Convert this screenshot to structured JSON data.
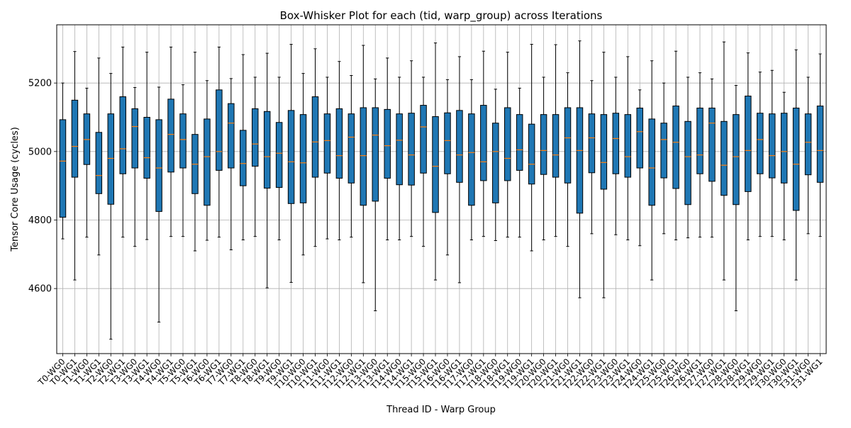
{
  "chart_data": {
    "type": "box",
    "title": "Box-Whisker Plot for each (tid, warp_group) across Iterations",
    "xlabel": "Thread ID - Warp Group",
    "ylabel": "Tensor Core Usage (cycles)",
    "ylim": [
      4410,
      5370
    ],
    "yticks": [
      4600,
      4800,
      5000,
      5200
    ],
    "grid": true,
    "colors": {
      "box_fill": "#1f77b4",
      "median": "#ff7f0e",
      "grid": "#b0b0b0",
      "outline": "#000000"
    },
    "categories": [
      "T0-WG0",
      "T0-WG1",
      "T1-WG0",
      "T1-WG1",
      "T2-WG0",
      "T2-WG1",
      "T3-WG0",
      "T3-WG1",
      "T4-WG0",
      "T4-WG1",
      "T5-WG0",
      "T5-WG1",
      "T6-WG0",
      "T6-WG1",
      "T7-WG0",
      "T7-WG1",
      "T8-WG0",
      "T8-WG1",
      "T9-WG0",
      "T9-WG1",
      "T10-WG0",
      "T10-WG1",
      "T11-WG0",
      "T11-WG1",
      "T12-WG0",
      "T12-WG1",
      "T13-WG0",
      "T13-WG1",
      "T14-WG0",
      "T14-WG1",
      "T15-WG0",
      "T15-WG1",
      "T16-WG0",
      "T16-WG1",
      "T17-WG0",
      "T17-WG1",
      "T18-WG0",
      "T18-WG1",
      "T19-WG0",
      "T19-WG1",
      "T20-WG0",
      "T20-WG1",
      "T21-WG0",
      "T21-WG1",
      "T22-WG0",
      "T22-WG1",
      "T23-WG0",
      "T23-WG1",
      "T24-WG0",
      "T24-WG1",
      "T25-WG0",
      "T25-WG1",
      "T26-WG0",
      "T26-WG1",
      "T27-WG0",
      "T27-WG1",
      "T28-WG0",
      "T28-WG1",
      "T29-WG0",
      "T29-WG1",
      "T30-WG0",
      "T30-WG1",
      "T31-WG0",
      "T31-WG1"
    ],
    "boxes": [
      {
        "min": 4745,
        "q1": 4808,
        "median": 4972,
        "q3": 5093,
        "max": 5200
      },
      {
        "min": 4625,
        "q1": 4925,
        "median": 5015,
        "q3": 5150,
        "max": 5292
      },
      {
        "min": 4750,
        "q1": 4962,
        "median": 5035,
        "q3": 5110,
        "max": 5185
      },
      {
        "min": 4698,
        "q1": 4877,
        "median": 4930,
        "q3": 5056,
        "max": 5273
      },
      {
        "min": 4452,
        "q1": 4846,
        "median": 4980,
        "q3": 5110,
        "max": 5228
      },
      {
        "min": 4750,
        "q1": 4935,
        "median": 5008,
        "q3": 5160,
        "max": 5305
      },
      {
        "min": 4723,
        "q1": 4952,
        "median": 5073,
        "q3": 5125,
        "max": 5187
      },
      {
        "min": 4743,
        "q1": 4922,
        "median": 4982,
        "q3": 5100,
        "max": 5290
      },
      {
        "min": 4502,
        "q1": 4825,
        "median": 4952,
        "q3": 5093,
        "max": 5188
      },
      {
        "min": 4752,
        "q1": 4940,
        "median": 5050,
        "q3": 5153,
        "max": 5305
      },
      {
        "min": 4752,
        "q1": 4952,
        "median": 5035,
        "q3": 5110,
        "max": 5195
      },
      {
        "min": 4710,
        "q1": 4877,
        "median": 4963,
        "q3": 5050,
        "max": 5290
      },
      {
        "min": 4741,
        "q1": 4843,
        "median": 4985,
        "q3": 5095,
        "max": 5207
      },
      {
        "min": 4750,
        "q1": 4945,
        "median": 5000,
        "q3": 5180,
        "max": 5305
      },
      {
        "min": 4713,
        "q1": 4952,
        "median": 5083,
        "q3": 5140,
        "max": 5213
      },
      {
        "min": 4742,
        "q1": 4900,
        "median": 4965,
        "q3": 5062,
        "max": 5283
      },
      {
        "min": 4752,
        "q1": 4957,
        "median": 5022,
        "q3": 5125,
        "max": 5217
      },
      {
        "min": 4602,
        "q1": 4893,
        "median": 4985,
        "q3": 5117,
        "max": 5287
      },
      {
        "min": 4742,
        "q1": 4895,
        "median": 4995,
        "q3": 5085,
        "max": 5217
      },
      {
        "min": 4618,
        "q1": 4848,
        "median": 4970,
        "q3": 5120,
        "max": 5313
      },
      {
        "min": 4698,
        "q1": 4850,
        "median": 4967,
        "q3": 5108,
        "max": 5228
      },
      {
        "min": 4723,
        "q1": 4925,
        "median": 5028,
        "q3": 5160,
        "max": 5300
      },
      {
        "min": 4745,
        "q1": 4937,
        "median": 5032,
        "q3": 5110,
        "max": 5217
      },
      {
        "min": 4742,
        "q1": 4922,
        "median": 4988,
        "q3": 5125,
        "max": 5263
      },
      {
        "min": 4750,
        "q1": 4908,
        "median": 5042,
        "q3": 5110,
        "max": 5222
      },
      {
        "min": 4617,
        "q1": 4843,
        "median": 4988,
        "q3": 5128,
        "max": 5310
      },
      {
        "min": 4535,
        "q1": 4855,
        "median": 5048,
        "q3": 5128,
        "max": 5212
      },
      {
        "min": 4742,
        "q1": 4922,
        "median": 5017,
        "q3": 5123,
        "max": 5273
      },
      {
        "min": 4742,
        "q1": 4903,
        "median": 5033,
        "q3": 5110,
        "max": 5217
      },
      {
        "min": 4752,
        "q1": 4902,
        "median": 4990,
        "q3": 5112,
        "max": 5265
      },
      {
        "min": 4723,
        "q1": 4937,
        "median": 5072,
        "q3": 5135,
        "max": 5217
      },
      {
        "min": 4625,
        "q1": 4822,
        "median": 4957,
        "q3": 5102,
        "max": 5317
      },
      {
        "min": 4698,
        "q1": 4935,
        "median": 5032,
        "q3": 5113,
        "max": 5210
      },
      {
        "min": 4617,
        "q1": 4910,
        "median": 4990,
        "q3": 5120,
        "max": 5277
      },
      {
        "min": 4742,
        "q1": 4843,
        "median": 4997,
        "q3": 5110,
        "max": 5210
      },
      {
        "min": 4752,
        "q1": 4915,
        "median": 4970,
        "q3": 5135,
        "max": 5293
      },
      {
        "min": 4740,
        "q1": 4850,
        "median": 5000,
        "q3": 5083,
        "max": 5182
      },
      {
        "min": 4750,
        "q1": 4915,
        "median": 4980,
        "q3": 5128,
        "max": 5290
      },
      {
        "min": 4750,
        "q1": 4945,
        "median": 5005,
        "q3": 5108,
        "max": 5185
      },
      {
        "min": 4710,
        "q1": 4905,
        "median": 4963,
        "q3": 5080,
        "max": 5313
      },
      {
        "min": 4742,
        "q1": 4933,
        "median": 5003,
        "q3": 5108,
        "max": 5217
      },
      {
        "min": 4752,
        "q1": 4925,
        "median": 4990,
        "q3": 5108,
        "max": 5312
      },
      {
        "min": 4723,
        "q1": 4908,
        "median": 5040,
        "q3": 5128,
        "max": 5230
      },
      {
        "min": 4573,
        "q1": 4820,
        "median": 5003,
        "q3": 5128,
        "max": 5323
      },
      {
        "min": 4760,
        "q1": 4938,
        "median": 5040,
        "q3": 5110,
        "max": 5207
      },
      {
        "min": 4573,
        "q1": 4890,
        "median": 4968,
        "q3": 5108,
        "max": 5290
      },
      {
        "min": 4757,
        "q1": 4935,
        "median": 5038,
        "q3": 5112,
        "max": 5217
      },
      {
        "min": 4742,
        "q1": 4925,
        "median": 4985,
        "q3": 5108,
        "max": 5277
      },
      {
        "min": 4725,
        "q1": 4952,
        "median": 5058,
        "q3": 5127,
        "max": 5180
      },
      {
        "min": 4625,
        "q1": 4843,
        "median": 4952,
        "q3": 5095,
        "max": 5265
      },
      {
        "min": 4760,
        "q1": 4923,
        "median": 5035,
        "q3": 5083,
        "max": 5200
      },
      {
        "min": 4742,
        "q1": 4892,
        "median": 5027,
        "q3": 5133,
        "max": 5293
      },
      {
        "min": 4748,
        "q1": 4845,
        "median": 4985,
        "q3": 5088,
        "max": 5217
      },
      {
        "min": 4750,
        "q1": 4935,
        "median": 4990,
        "q3": 5127,
        "max": 5230
      },
      {
        "min": 4750,
        "q1": 4913,
        "median": 5083,
        "q3": 5127,
        "max": 5212
      },
      {
        "min": 4625,
        "q1": 4872,
        "median": 4960,
        "q3": 5088,
        "max": 5320
      },
      {
        "min": 4535,
        "q1": 4845,
        "median": 4985,
        "q3": 5108,
        "max": 5193
      },
      {
        "min": 4742,
        "q1": 4883,
        "median": 5003,
        "q3": 5162,
        "max": 5288
      },
      {
        "min": 4752,
        "q1": 4935,
        "median": 5035,
        "q3": 5112,
        "max": 5232
      },
      {
        "min": 4752,
        "q1": 4923,
        "median": 4988,
        "q3": 5110,
        "max": 5237
      },
      {
        "min": 4742,
        "q1": 4908,
        "median": 5000,
        "q3": 5112,
        "max": 5173
      },
      {
        "min": 4625,
        "q1": 4828,
        "median": 4963,
        "q3": 5127,
        "max": 5297
      },
      {
        "min": 4760,
        "q1": 4932,
        "median": 5027,
        "q3": 5110,
        "max": 5217
      },
      {
        "min": 4752,
        "q1": 4910,
        "median": 5003,
        "q3": 5133,
        "max": 5285
      }
    ]
  }
}
